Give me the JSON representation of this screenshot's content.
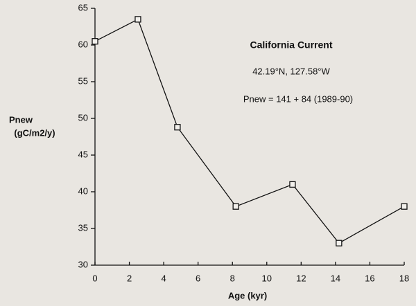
{
  "chart_data": {
    "type": "line",
    "title": "California Current",
    "annotations": [
      "42.19°N, 127.58°W",
      "Pnew = 141 + 84 (1989-90)"
    ],
    "ylabel": [
      "Pnew",
      "(gC/m2/y)"
    ],
    "xlabel": "Age (kyr)",
    "x": [
      0,
      2.5,
      4.8,
      8.2,
      11.5,
      14.2,
      18
    ],
    "series": [
      {
        "name": null,
        "color": "#111111",
        "values": [
          60.5,
          63.5,
          48.8,
          38,
          41,
          33,
          38
        ]
      }
    ],
    "xlim": [
      0,
      18
    ],
    "xticks": [
      0,
      2,
      4,
      6,
      8,
      10,
      12,
      14,
      16,
      18
    ],
    "ylim": [
      30,
      65
    ],
    "yticks": [
      30,
      35,
      40,
      45,
      50,
      55,
      60,
      65
    ],
    "grid": false
  }
}
